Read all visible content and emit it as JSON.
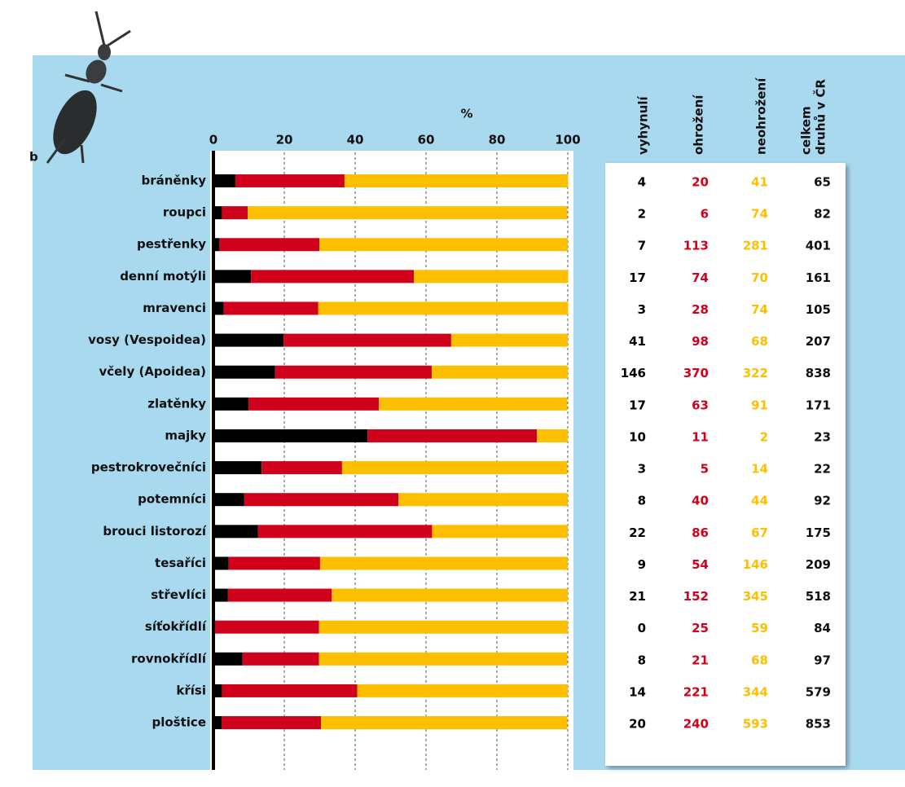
{
  "chart_data": {
    "type": "stacked-bar-horizontal",
    "panel_label": "b",
    "axis_label": "%",
    "xlim": [
      0,
      100
    ],
    "xticks": [
      0,
      20,
      40,
      60,
      80,
      100
    ],
    "grid": true,
    "categories": [
      "bráněnky",
      "roupci",
      "pestřenky",
      "denní motýli",
      "mravenci",
      "vosy (Vespoidea)",
      "včely (Apoidea)",
      "zlatěnky",
      "majky",
      "pestrokrovečníci",
      "potemníci",
      "brouci listorozí",
      "tesaříci",
      "střevlíci",
      "síťokřídlí",
      "rovnokřídlí",
      "křísi",
      "ploštice"
    ],
    "series": [
      {
        "color": "#000000",
        "values": [
          6.2,
          2.4,
          1.7,
          10.6,
          2.9,
          19.8,
          17.4,
          9.9,
          43.5,
          13.6,
          8.7,
          12.6,
          4.3,
          4.1,
          0,
          8.2,
          2.4,
          2.3
        ]
      },
      {
        "color": "#d0021b",
        "values": [
          30.8,
          7.3,
          28.2,
          46.0,
          26.7,
          47.3,
          44.2,
          36.8,
          47.8,
          22.7,
          43.5,
          49.1,
          25.8,
          29.3,
          29.8,
          21.6,
          38.2,
          28.1
        ]
      },
      {
        "color": "#fcc000",
        "values": [
          63.1,
          90.2,
          70.1,
          43.5,
          70.5,
          32.9,
          38.4,
          53.2,
          8.7,
          63.6,
          47.8,
          38.3,
          69.9,
          66.6,
          70.2,
          70.1,
          59.4,
          69.5
        ]
      }
    ]
  },
  "table": {
    "headers": [
      "vyhynulí",
      "ohrožení",
      "neohrožení",
      {
        "lines": [
          "celkem",
          "druhů v ČR"
        ]
      }
    ],
    "rows": [
      [
        4,
        20,
        41,
        65
      ],
      [
        2,
        6,
        74,
        82
      ],
      [
        7,
        113,
        281,
        401
      ],
      [
        17,
        74,
        70,
        161
      ],
      [
        3,
        28,
        74,
        105
      ],
      [
        41,
        98,
        68,
        207
      ],
      [
        146,
        370,
        322,
        838
      ],
      [
        17,
        63,
        91,
        171
      ],
      [
        10,
        11,
        2,
        23
      ],
      [
        3,
        5,
        14,
        22
      ],
      [
        8,
        40,
        44,
        92
      ],
      [
        22,
        86,
        67,
        175
      ],
      [
        9,
        54,
        146,
        209
      ],
      [
        21,
        152,
        345,
        518
      ],
      [
        0,
        25,
        59,
        84
      ],
      [
        8,
        21,
        68,
        97
      ],
      [
        14,
        221,
        344,
        579
      ],
      [
        20,
        240,
        593,
        853
      ]
    ]
  }
}
